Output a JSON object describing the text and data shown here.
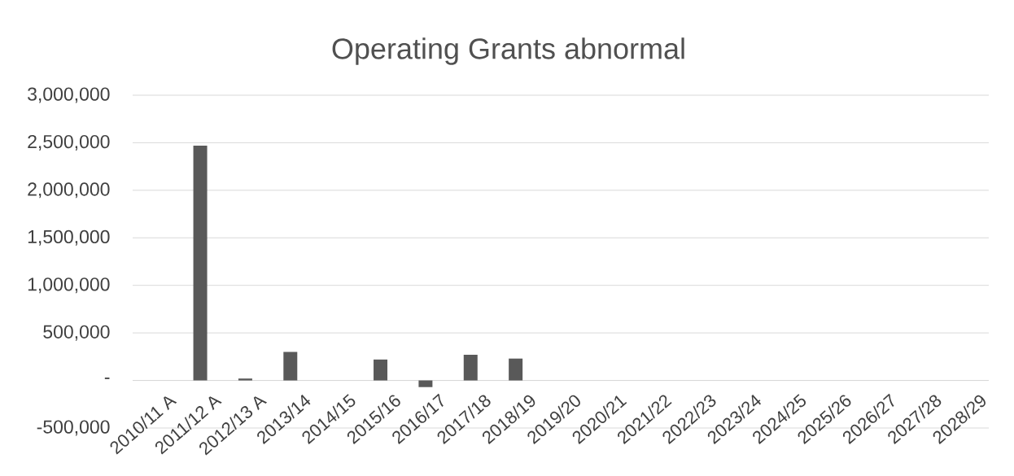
{
  "chart_data": {
    "type": "bar",
    "title": "Operating Grants abnormal",
    "categories": [
      "2010/11 A",
      "2011/12 A",
      "2012/13 A",
      "2013/14",
      "2014/15",
      "2015/16",
      "2016/17",
      "2017/18",
      "2018/19",
      "2019/20",
      "2020/21",
      "2021/22",
      "2022/23",
      "2023/24",
      "2024/25",
      "2025/26",
      "2026/27",
      "2027/28",
      "2028/29"
    ],
    "values": [
      null,
      2470000,
      20000,
      300000,
      null,
      220000,
      -70000,
      270000,
      230000,
      null,
      null,
      null,
      null,
      null,
      null,
      null,
      null,
      null,
      null
    ],
    "color": "#595959",
    "ylim": [
      -500000,
      3000000
    ],
    "yticks": [
      {
        "value": -500000,
        "label": "-500,000"
      },
      {
        "value": 0,
        "label": "-"
      },
      {
        "value": 500000,
        "label": "500,000"
      },
      {
        "value": 1000000,
        "label": "1,000,000"
      },
      {
        "value": 1500000,
        "label": "1,500,000"
      },
      {
        "value": 2000000,
        "label": "2,000,000"
      },
      {
        "value": 2500000,
        "label": "2,500,000"
      },
      {
        "value": 3000000,
        "label": "3,000,000"
      }
    ],
    "grid": "y"
  }
}
